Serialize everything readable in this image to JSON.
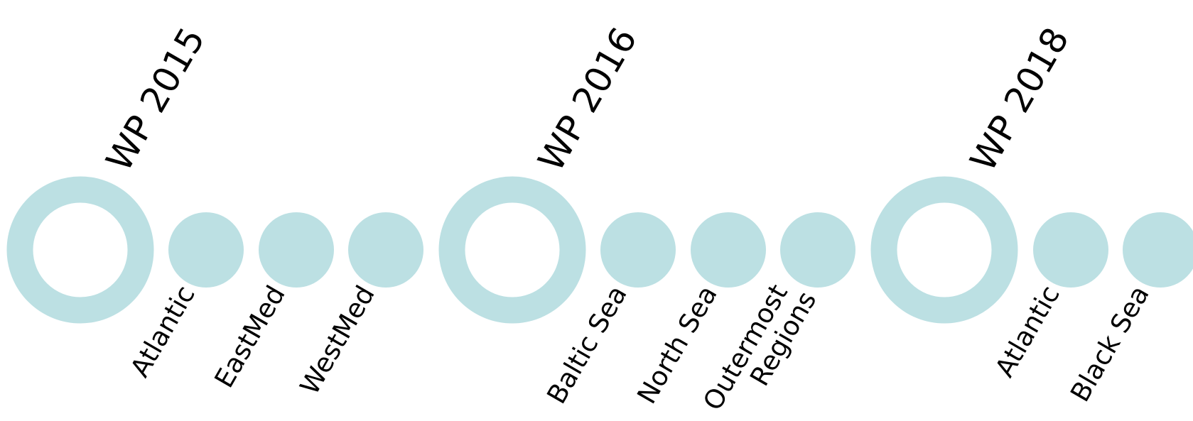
{
  "colors": {
    "circle": "#bce0e3",
    "background": "#ffffff",
    "text": "#000000"
  },
  "work_programmes": [
    {
      "title": "WP 2015",
      "regions": [
        {
          "lines": [
            "Atlantic"
          ]
        },
        {
          "lines": [
            "EastMed"
          ]
        },
        {
          "lines": [
            "WestMed"
          ]
        }
      ]
    },
    {
      "title": "WP 2016",
      "regions": [
        {
          "lines": [
            "Baltic Sea"
          ]
        },
        {
          "lines": [
            "North Sea"
          ]
        },
        {
          "lines": [
            "Outermost",
            "Regions"
          ]
        }
      ]
    },
    {
      "title": "WP 2018",
      "regions": [
        {
          "lines": [
            "Atlantic"
          ]
        },
        {
          "lines": [
            "Black Sea"
          ]
        }
      ]
    }
  ]
}
